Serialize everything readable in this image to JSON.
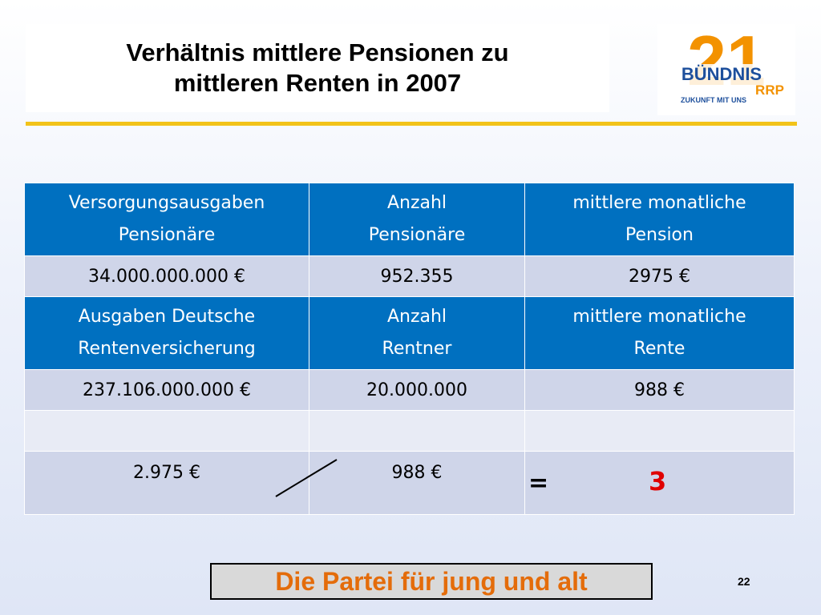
{
  "title": {
    "line1": "Verhältnis mittlere Pensionen zu",
    "line2": "mittleren Renten in 2007"
  },
  "logo": {
    "number": "21",
    "name": "BÜNDNIS",
    "region": "RRP",
    "tagline": "ZUKUNFT MIT UNS"
  },
  "table": {
    "header1": [
      {
        "l1": "Versorgungsausgaben",
        "l2": "Pensionäre"
      },
      {
        "l1": "Anzahl",
        "l2": "Pensionäre"
      },
      {
        "l1": "mittlere monatliche",
        "l2": "Pension"
      }
    ],
    "row1": [
      "34.000.000.000 €",
      "952.355",
      "2975 €"
    ],
    "header2": [
      {
        "l1": "Ausgaben Deutsche",
        "l2": "Rentenversicherung"
      },
      {
        "l1": "Anzahl",
        "l2": "Rentner"
      },
      {
        "l1": "mittlere monatliche",
        "l2": "Rente"
      }
    ],
    "row2": [
      "237.106.000.000 €",
      "20.000.000",
      "988 €"
    ],
    "calc": {
      "numerator": "2.975 €",
      "denominator": "988 €",
      "equals": "=",
      "result": "3"
    }
  },
  "footer": {
    "slogan": "Die Partei für jung und alt",
    "page_number": "22"
  },
  "colors": {
    "header_blue": "#0070c0",
    "row_gray": "#cfd5e9",
    "gold_line": "#f2c319",
    "logo_orange": "#f39200",
    "logo_blue": "#1d4f9c",
    "result_red": "#e00000",
    "slogan_orange": "#e46c0a"
  }
}
